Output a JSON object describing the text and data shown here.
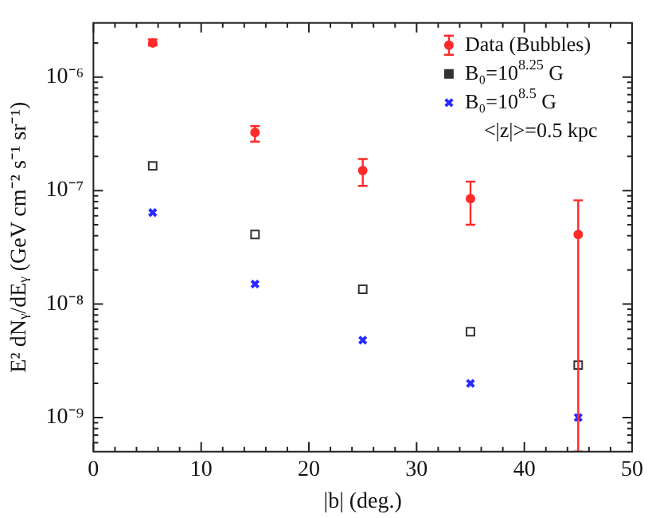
{
  "chart_data": {
    "type": "scatter",
    "xlabel": "|b| (deg.)",
    "ylabel": "E² dNᵧ/dEᵧ (GeV cm⁻² s⁻¹ sr⁻¹)",
    "x": [
      5.5,
      15,
      25,
      35,
      45
    ],
    "series": [
      {
        "name": "Data (Bubbles)",
        "color": "#ff2a2a",
        "marker": "circle",
        "values": [
          2e-06,
          3.25e-07,
          1.5e-07,
          8.5e-08,
          4.1e-08
        ],
        "errors": [
          [
            1.9e-06,
            2.15e-06
          ],
          [
            2.7e-07,
            3.7e-07
          ],
          [
            1.1e-07,
            1.9e-07
          ],
          [
            5e-08,
            1.2e-07
          ],
          [
            5e-10,
            8.2e-08
          ]
        ]
      },
      {
        "name": "B₀=10$^{8.25}$ G",
        "color": "#333333",
        "marker": "square",
        "values": [
          1.65e-07,
          4.1e-08,
          1.35e-08,
          5.7e-09,
          2.9e-09
        ]
      },
      {
        "name": "B₀=10$^{8.5}$ G",
        "color": "#2a2aff",
        "marker": "cross",
        "values": [
          6.4e-08,
          1.5e-08,
          4.8e-09,
          2e-09,
          1e-09
        ]
      }
    ],
    "log": "y",
    "xlim": [
      0,
      50
    ],
    "ylim": [
      5e-10,
      3e-06
    ],
    "xticks": [
      0,
      {
        "value": 2,
        "label": null
      },
      {
        "value": 4,
        "label": null
      },
      {
        "value": 6,
        "label": null
      },
      {
        "value": 8,
        "label": null
      },
      10,
      {
        "value": 12,
        "label": null
      },
      {
        "value": 14,
        "label": null
      },
      {
        "value": 16,
        "label": null
      },
      {
        "value": 18,
        "label": null
      },
      20,
      {
        "value": 22,
        "label": null
      },
      {
        "value": 24,
        "label": null
      },
      {
        "value": 26,
        "label": null
      },
      {
        "value": 28,
        "label": null
      },
      30,
      {
        "value": 32,
        "label": null
      },
      {
        "value": 34,
        "label": null
      },
      {
        "value": 36,
        "label": null
      },
      {
        "value": 38,
        "label": null
      },
      40,
      {
        "value": 42,
        "label": null
      },
      {
        "value": 44,
        "label": null
      },
      {
        "value": 46,
        "label": null
      },
      {
        "value": 48,
        "label": null
      },
      50
    ],
    "yticks": [
      {
        "value": 6e-10,
        "label": null
      },
      {
        "value": 7e-10,
        "label": null
      },
      {
        "value": 8e-10,
        "label": null
      },
      {
        "value": 9e-10,
        "label": null
      },
      {
        "value": 1e-09,
        "label": "10⁻⁹"
      },
      {
        "value": 2e-09,
        "label": null
      },
      {
        "value": 3e-09,
        "label": null
      },
      {
        "value": 4e-09,
        "label": null
      },
      {
        "value": 5e-09,
        "label": null
      },
      {
        "value": 6e-09,
        "label": null
      },
      {
        "value": 7e-09,
        "label": null
      },
      {
        "value": 8e-09,
        "label": null
      },
      {
        "value": 9e-09,
        "label": null
      },
      {
        "value": 1e-08,
        "label": "10⁻⁸"
      },
      {
        "value": 2e-08,
        "label": null
      },
      {
        "value": 3e-08,
        "label": null
      },
      {
        "value": 4e-08,
        "label": null
      },
      {
        "value": 5e-08,
        "label": null
      },
      {
        "value": 6e-08,
        "label": null
      },
      {
        "value": 7e-08,
        "label": null
      },
      {
        "value": 8e-08,
        "label": null
      },
      {
        "value": 9e-08,
        "label": null
      },
      {
        "value": 1e-07,
        "label": "10⁻⁷"
      },
      {
        "value": 2e-07,
        "label": null
      },
      {
        "value": 3e-07,
        "label": null
      },
      {
        "value": 4e-07,
        "label": null
      },
      {
        "value": 5e-07,
        "label": null
      },
      {
        "value": 6e-07,
        "label": null
      },
      {
        "value": 7e-07,
        "label": null
      },
      {
        "value": 8e-07,
        "label": null
      },
      {
        "value": 9e-07,
        "label": null
      },
      {
        "value": 1e-06,
        "label": "10⁻⁶"
      },
      {
        "value": 2e-06,
        "label": null
      }
    ],
    "grid": false,
    "legend": "top right",
    "annotations": [
      "<|z|>=0.5 kpc"
    ]
  }
}
